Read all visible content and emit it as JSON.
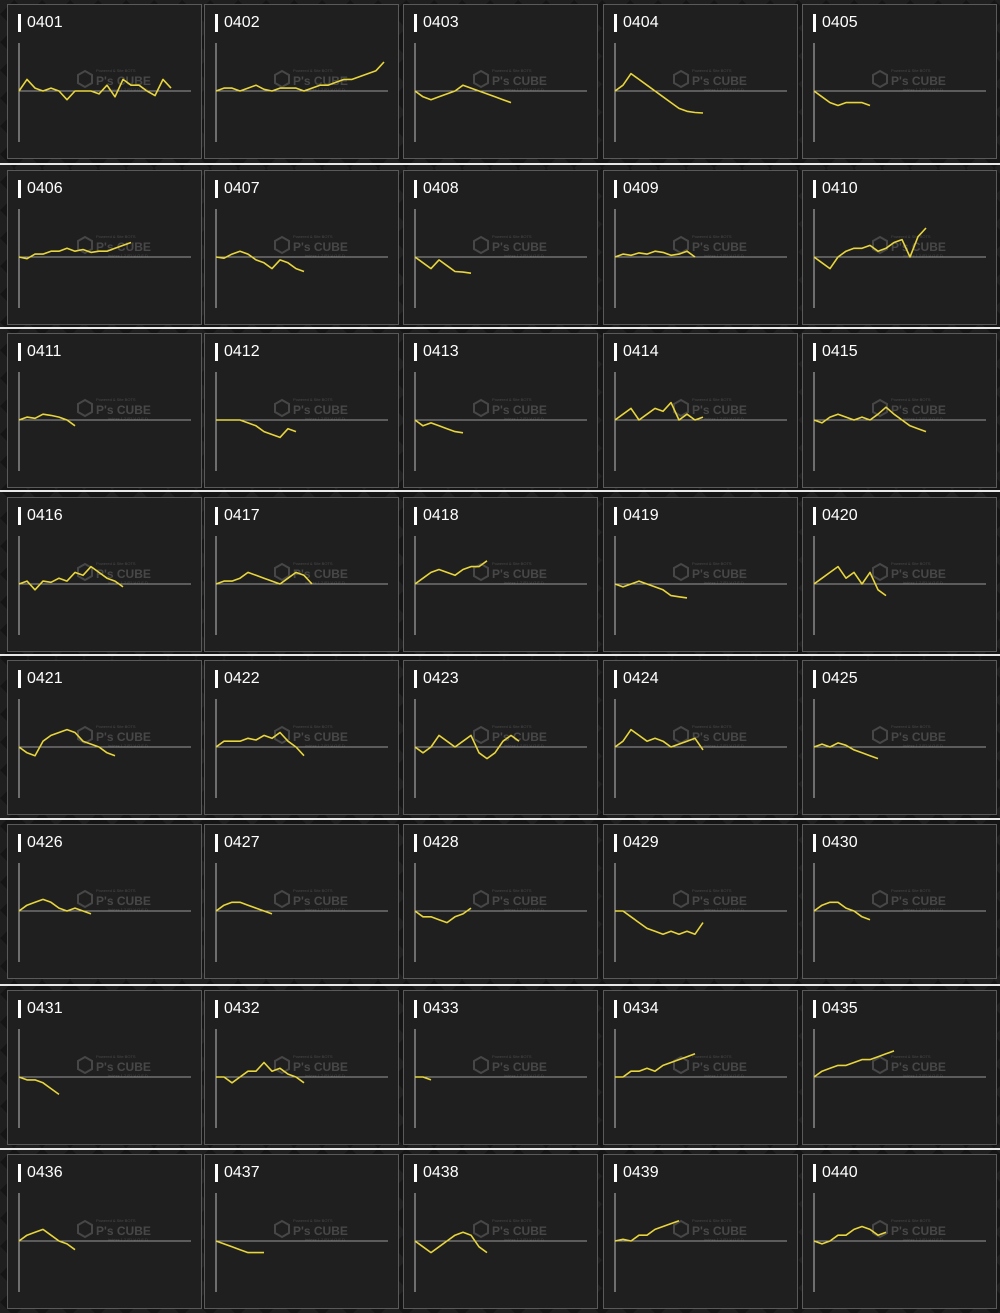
{
  "colors": {
    "line": "#e8d53c",
    "baseline": "#9a9a9a",
    "axis": "#bdbdbd",
    "panel_bg": "#1f1f1f",
    "label": "#ffffff"
  },
  "watermark": {
    "text": "P's CUBE",
    "small_top": "Powered & Site BOTS",
    "small_bottom": "indexx 1 2 P? V O F D"
  },
  "chart_data": [
    {
      "type": "line",
      "title": "0401",
      "values": [
        0,
        -2,
        -0.5,
        0,
        -0.5,
        0,
        1.5,
        0,
        0,
        0,
        0.5,
        -1,
        1,
        -2,
        -1,
        -1,
        0,
        0.8,
        -2,
        -0.5
      ]
    },
    {
      "type": "line",
      "title": "0402",
      "values": [
        0,
        -0.5,
        -0.5,
        0,
        -0.5,
        -1,
        -0.3,
        0,
        -0.5,
        -0.5,
        -0.5,
        0,
        -0.5,
        -1,
        -1,
        -1.5,
        -2,
        -2,
        -2.5,
        -3,
        -3.5,
        -5
      ]
    },
    {
      "type": "line",
      "title": "0403",
      "values": [
        0,
        1,
        1.5,
        1,
        0.5,
        0,
        -1,
        -0.5,
        0,
        0.5,
        1,
        1.5,
        2
      ]
    },
    {
      "type": "line",
      "title": "0404",
      "values": [
        0,
        -1,
        -3,
        -2,
        -1,
        0,
        1,
        2,
        3,
        3.5,
        3.7,
        3.8
      ]
    },
    {
      "type": "line",
      "title": "0405",
      "values": [
        0,
        1,
        2,
        2.5,
        2,
        2,
        2,
        2.5
      ]
    },
    {
      "type": "line",
      "title": "0406",
      "values": [
        0,
        0.3,
        -0.5,
        -0.5,
        -1,
        -1,
        -1.5,
        -1,
        -1.3,
        -0.8,
        -1,
        -1,
        -1.5,
        -2,
        -2.5
      ]
    },
    {
      "type": "line",
      "title": "0407",
      "values": [
        0,
        0.2,
        -0.5,
        -1,
        -0.5,
        0.5,
        1,
        2,
        0.5,
        1,
        2,
        2.5
      ]
    },
    {
      "type": "line",
      "title": "0408",
      "values": [
        0,
        1,
        2,
        0.5,
        1.5,
        2.5,
        2.6,
        2.8
      ]
    },
    {
      "type": "line",
      "title": "0409",
      "values": [
        0,
        -0.5,
        -0.3,
        -0.7,
        -0.5,
        -1,
        -0.8,
        -0.3,
        -0.5,
        -1,
        0
      ]
    },
    {
      "type": "line",
      "title": "0410",
      "values": [
        0,
        1,
        2,
        0,
        -1,
        -1.5,
        -1.5,
        -2,
        -1,
        -1.5,
        -2.5,
        -3,
        0,
        -3.5,
        -5
      ]
    },
    {
      "type": "line",
      "title": "0411",
      "values": [
        0,
        -0.5,
        -0.3,
        -1,
        -0.8,
        -0.5,
        0,
        1
      ]
    },
    {
      "type": "line",
      "title": "0412",
      "values": [
        0,
        0,
        0,
        0,
        0.5,
        1,
        2,
        2.5,
        3,
        1.5,
        2
      ]
    },
    {
      "type": "line",
      "title": "0413",
      "values": [
        0,
        1,
        0.5,
        1,
        1.5,
        2,
        2.2
      ]
    },
    {
      "type": "line",
      "title": "0414",
      "values": [
        0,
        -1,
        -2,
        0,
        -1,
        -2,
        -1.5,
        -3,
        0,
        -1,
        0,
        -0.5
      ]
    },
    {
      "type": "line",
      "title": "0415",
      "values": [
        0,
        0.5,
        -0.5,
        -1,
        -0.5,
        0,
        -0.5,
        0,
        -1,
        -2.2,
        -1,
        0,
        1,
        1.5,
        2
      ]
    },
    {
      "type": "line",
      "title": "0416",
      "values": [
        0,
        -0.5,
        1,
        -0.5,
        -0.3,
        -1,
        -0.5,
        -2,
        -1.5,
        -3,
        -2,
        -1,
        -0.5,
        0.5
      ]
    },
    {
      "type": "line",
      "title": "0417",
      "values": [
        0,
        -0.5,
        -0.5,
        -1,
        -2,
        -1.5,
        -1,
        -0.5,
        0,
        -1,
        -2,
        -1.5,
        0
      ]
    },
    {
      "type": "line",
      "title": "0418",
      "values": [
        0,
        -1,
        -2,
        -2.5,
        -2,
        -1.5,
        -2.5,
        -3,
        -3,
        -4
      ]
    },
    {
      "type": "line",
      "title": "0419",
      "values": [
        0,
        0.5,
        0,
        -0.5,
        0,
        0.5,
        1,
        2,
        2.2,
        2.4
      ]
    },
    {
      "type": "line",
      "title": "0420",
      "values": [
        0,
        -1,
        -2,
        -3,
        -1,
        -2,
        0,
        -2,
        1,
        2
      ]
    },
    {
      "type": "line",
      "title": "0421",
      "values": [
        0,
        1,
        1.5,
        -1,
        -2,
        -2.5,
        -3,
        -2.5,
        -1,
        -0.5,
        0,
        1,
        1.5
      ]
    },
    {
      "type": "line",
      "title": "0422",
      "values": [
        0,
        -1,
        -1,
        -1,
        -1.5,
        -1.2,
        -2,
        -1.5,
        -2.5,
        -1,
        0,
        1.5
      ]
    },
    {
      "type": "line",
      "title": "0423",
      "values": [
        0,
        1,
        0,
        -2,
        -1,
        0,
        -1,
        -2,
        1,
        2,
        1,
        -1,
        -2,
        -1
      ]
    },
    {
      "type": "line",
      "title": "0424",
      "values": [
        0,
        -1,
        -3,
        -2,
        -1,
        -1.5,
        -1,
        0,
        -0.5,
        -1,
        -1.5,
        0.5
      ]
    },
    {
      "type": "line",
      "title": "0425",
      "values": [
        0,
        -0.5,
        0,
        -0.7,
        -0.3,
        0.5,
        1,
        1.5,
        2
      ]
    },
    {
      "type": "line",
      "title": "0426",
      "values": [
        0,
        -1,
        -1.5,
        -2,
        -1.5,
        -0.5,
        0,
        -0.5,
        0,
        0.5
      ]
    },
    {
      "type": "line",
      "title": "0427",
      "values": [
        0,
        -1,
        -1.5,
        -1.5,
        -1,
        -0.5,
        0,
        0.5
      ]
    },
    {
      "type": "line",
      "title": "0428",
      "values": [
        0,
        1,
        1,
        1.5,
        2,
        1,
        0.5,
        -0.5
      ]
    },
    {
      "type": "line",
      "title": "0429",
      "values": [
        0,
        0,
        1,
        2,
        3,
        3.5,
        4,
        3.5,
        4,
        3.5,
        4,
        2
      ]
    },
    {
      "type": "line",
      "title": "0430",
      "values": [
        0,
        -1,
        -1.5,
        -1.5,
        -0.5,
        0,
        1,
        1.5
      ]
    },
    {
      "type": "line",
      "title": "0431",
      "values": [
        0,
        0.5,
        0.5,
        1,
        2,
        3
      ]
    },
    {
      "type": "line",
      "title": "0432",
      "values": [
        0,
        0,
        1,
        0,
        -1,
        -1,
        -2.5,
        -1,
        -1.5,
        -0.5,
        0,
        1
      ]
    },
    {
      "type": "line",
      "title": "0433",
      "values": [
        0,
        0,
        0.5
      ]
    },
    {
      "type": "line",
      "title": "0434",
      "values": [
        0,
        0,
        -1,
        -1,
        -1.5,
        -1,
        -2,
        -2.5,
        -3,
        -3.5,
        -4
      ]
    },
    {
      "type": "line",
      "title": "0435",
      "values": [
        0,
        -1,
        -1.5,
        -2,
        -2,
        -2.5,
        -3,
        -3,
        -3.5,
        -4,
        -4.5
      ]
    },
    {
      "type": "line",
      "title": "0436",
      "values": [
        0,
        -1,
        -1.5,
        -2,
        -1,
        0,
        0.5,
        1.5
      ]
    },
    {
      "type": "line",
      "title": "0437",
      "values": [
        0,
        0.5,
        1,
        1.5,
        2,
        2,
        2
      ]
    },
    {
      "type": "line",
      "title": "0438",
      "values": [
        0,
        1,
        2,
        1,
        0,
        -1,
        -1.5,
        -1,
        1,
        2
      ]
    },
    {
      "type": "line",
      "title": "0439",
      "values": [
        0,
        -0.3,
        0,
        -1,
        -1,
        -2,
        -2.5,
        -3,
        -3.5
      ]
    },
    {
      "type": "line",
      "title": "0440",
      "values": [
        0,
        0.5,
        0,
        -1,
        -1,
        -2,
        -2.5,
        -2,
        -1,
        -1.5
      ]
    }
  ]
}
